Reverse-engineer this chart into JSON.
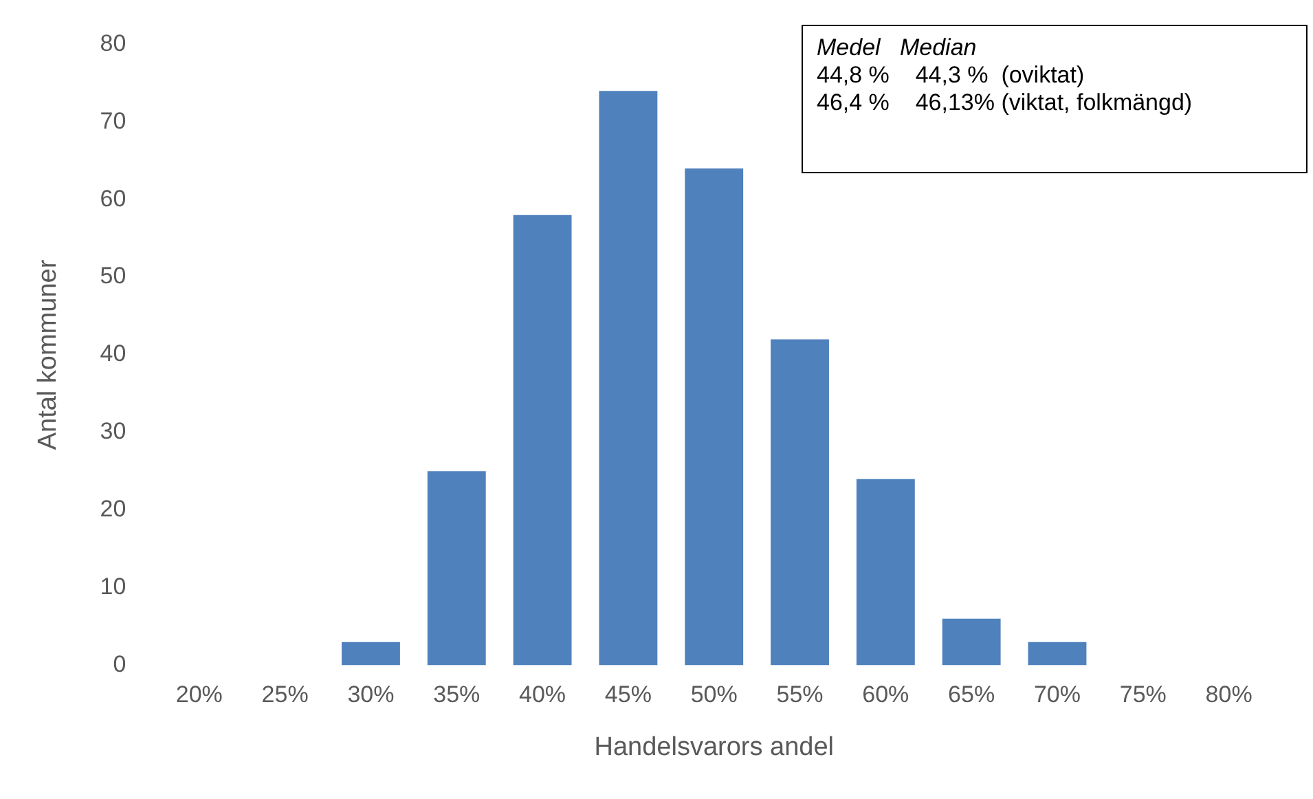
{
  "chart_data": {
    "type": "bar",
    "xlabel": "Handelsvarors andel",
    "ylabel": "Antal kommuner",
    "categories": [
      "20%",
      "25%",
      "30%",
      "35%",
      "40%",
      "45%",
      "50%",
      "55%",
      "60%",
      "65%",
      "70%",
      "75%",
      "80%"
    ],
    "values": [
      0,
      0,
      3,
      25,
      58,
      74,
      64,
      42,
      24,
      6,
      3,
      0,
      0
    ],
    "color": "#4f81bd",
    "ylim": [
      0,
      80
    ],
    "yticks": [
      0,
      10,
      20,
      30,
      40,
      50,
      60,
      70,
      80
    ],
    "grid": false,
    "annotations": [
      "Medel   Median",
      "44,8 %    44,3 %  (oviktat)",
      "46,4 %    46,13% (viktat, folkmängd)"
    ]
  }
}
